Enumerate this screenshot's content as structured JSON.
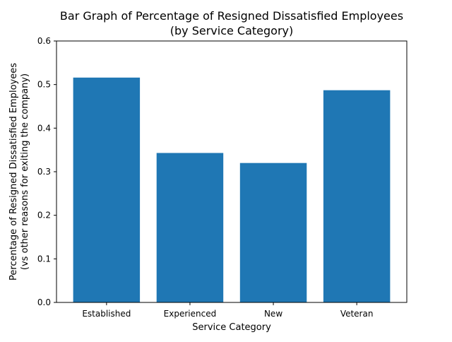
{
  "chart_data": {
    "type": "bar",
    "title": [
      "Bar Graph of Percentage of Resigned Dissatisfied Employees",
      "(by Service Category)"
    ],
    "xlabel": "Service Category",
    "ylabel": [
      "Percentage of Resigned Dissatisfied Employees",
      "(vs other reasons for exiting the company)"
    ],
    "categories": [
      "Established",
      "Experienced",
      "New",
      "Veteran"
    ],
    "values": [
      0.516,
      0.343,
      0.32,
      0.487
    ],
    "ylim": [
      0,
      0.6
    ],
    "yticks": [
      0.0,
      0.1,
      0.2,
      0.3,
      0.4,
      0.5,
      0.6
    ],
    "ytick_labels": [
      "0.0",
      "0.1",
      "0.2",
      "0.3",
      "0.4",
      "0.5",
      "0.6"
    ],
    "bar_color": "#1f77b4",
    "grid": false,
    "legend": false
  }
}
